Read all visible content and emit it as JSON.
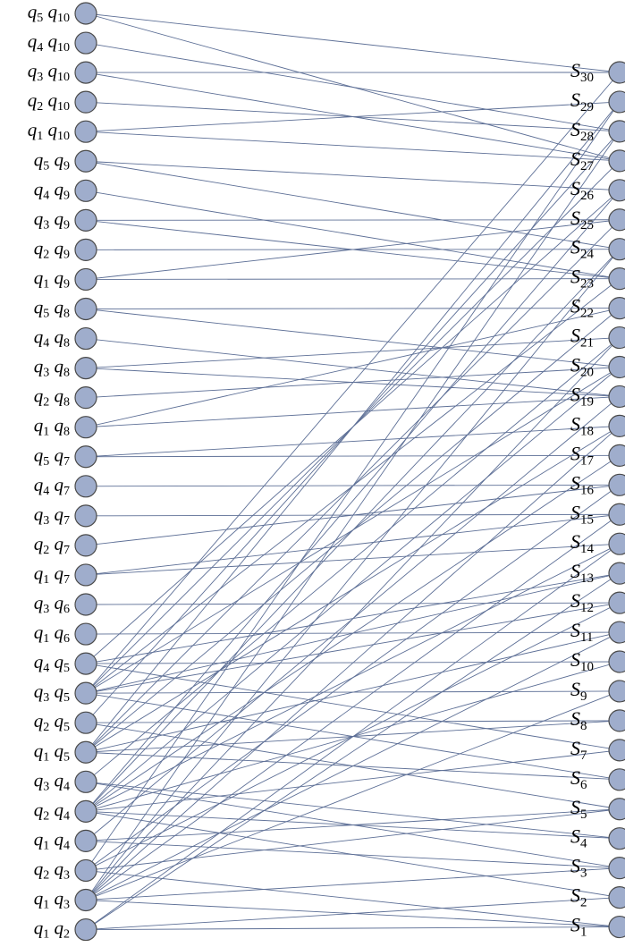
{
  "left_nodes": [
    {
      "id": "q5q10",
      "a": "5",
      "b": "10"
    },
    {
      "id": "q4q10",
      "a": "4",
      "b": "10"
    },
    {
      "id": "q3q10",
      "a": "3",
      "b": "10"
    },
    {
      "id": "q2q10",
      "a": "2",
      "b": "10"
    },
    {
      "id": "q1q10",
      "a": "1",
      "b": "10"
    },
    {
      "id": "q5q9",
      "a": "5",
      "b": "9"
    },
    {
      "id": "q4q9",
      "a": "4",
      "b": "9"
    },
    {
      "id": "q3q9",
      "a": "3",
      "b": "9"
    },
    {
      "id": "q2q9",
      "a": "2",
      "b": "9"
    },
    {
      "id": "q1q9",
      "a": "1",
      "b": "9"
    },
    {
      "id": "q5q8",
      "a": "5",
      "b": "8"
    },
    {
      "id": "q4q8",
      "a": "4",
      "b": "8"
    },
    {
      "id": "q3q8",
      "a": "3",
      "b": "8"
    },
    {
      "id": "q2q8",
      "a": "2",
      "b": "8"
    },
    {
      "id": "q1q8",
      "a": "1",
      "b": "8"
    },
    {
      "id": "q5q7",
      "a": "5",
      "b": "7"
    },
    {
      "id": "q4q7",
      "a": "4",
      "b": "7"
    },
    {
      "id": "q3q7",
      "a": "3",
      "b": "7"
    },
    {
      "id": "q2q7",
      "a": "2",
      "b": "7"
    },
    {
      "id": "q1q7",
      "a": "1",
      "b": "7"
    },
    {
      "id": "q3q6",
      "a": "3",
      "b": "6"
    },
    {
      "id": "q1q6",
      "a": "1",
      "b": "6"
    },
    {
      "id": "q4q5",
      "a": "4",
      "b": "5"
    },
    {
      "id": "q3q5",
      "a": "3",
      "b": "5"
    },
    {
      "id": "q2q5",
      "a": "2",
      "b": "5"
    },
    {
      "id": "q1q5",
      "a": "1",
      "b": "5"
    },
    {
      "id": "q3q4",
      "a": "3",
      "b": "4"
    },
    {
      "id": "q2q4",
      "a": "2",
      "b": "4"
    },
    {
      "id": "q1q4",
      "a": "1",
      "b": "4"
    },
    {
      "id": "q2q3",
      "a": "2",
      "b": "3"
    },
    {
      "id": "q1q3",
      "a": "1",
      "b": "3"
    },
    {
      "id": "q1q2",
      "a": "1",
      "b": "2"
    }
  ],
  "right_nodes": [
    "30",
    "29",
    "28",
    "27",
    "26",
    "25",
    "24",
    "23",
    "22",
    "21",
    "20",
    "19",
    "18",
    "17",
    "16",
    "15",
    "14",
    "13",
    "12",
    "11",
    "10",
    "9",
    "8",
    "7",
    "6",
    "5",
    "4",
    "3",
    "2",
    "1"
  ],
  "edges": [
    [
      "q5q10",
      "30"
    ],
    [
      "q5q10",
      "27"
    ],
    [
      "q4q10",
      "28"
    ],
    [
      "q3q10",
      "30"
    ],
    [
      "q3q10",
      "27"
    ],
    [
      "q2q10",
      "28"
    ],
    [
      "q1q10",
      "29"
    ],
    [
      "q1q10",
      "27"
    ],
    [
      "q5q9",
      "26"
    ],
    [
      "q5q9",
      "24"
    ],
    [
      "q4q9",
      "23"
    ],
    [
      "q3q9",
      "25"
    ],
    [
      "q3q9",
      "23"
    ],
    [
      "q2q9",
      "24"
    ],
    [
      "q1q9",
      "25"
    ],
    [
      "q1q9",
      "23"
    ],
    [
      "q5q8",
      "22"
    ],
    [
      "q5q8",
      "20"
    ],
    [
      "q4q8",
      "19"
    ],
    [
      "q3q8",
      "21"
    ],
    [
      "q3q8",
      "19"
    ],
    [
      "q2q8",
      "20"
    ],
    [
      "q1q8",
      "22"
    ],
    [
      "q1q8",
      "19"
    ],
    [
      "q5q7",
      "18"
    ],
    [
      "q5q7",
      "17"
    ],
    [
      "q4q7",
      "16"
    ],
    [
      "q3q7",
      "15"
    ],
    [
      "q2q7",
      "16"
    ],
    [
      "q1q7",
      "15"
    ],
    [
      "q1q7",
      "14"
    ],
    [
      "q3q6",
      "12"
    ],
    [
      "q1q6",
      "11"
    ],
    [
      "q4q5",
      "10"
    ],
    [
      "q4q5",
      "7"
    ],
    [
      "q4q5",
      "26"
    ],
    [
      "q4q5",
      "13"
    ],
    [
      "q3q5",
      "30"
    ],
    [
      "q3q5",
      "27"
    ],
    [
      "q3q5",
      "23"
    ],
    [
      "q3q5",
      "20"
    ],
    [
      "q3q5",
      "9"
    ],
    [
      "q3q5",
      "6"
    ],
    [
      "q3q5",
      "13"
    ],
    [
      "q3q5",
      "12"
    ],
    [
      "q2q5",
      "8"
    ],
    [
      "q2q5",
      "5"
    ],
    [
      "q2q5",
      "28"
    ],
    [
      "q1q5",
      "29"
    ],
    [
      "q1q5",
      "25"
    ],
    [
      "q1q5",
      "22"
    ],
    [
      "q1q5",
      "18"
    ],
    [
      "q1q5",
      "8"
    ],
    [
      "q1q5",
      "6"
    ],
    [
      "q1q5",
      "11"
    ],
    [
      "q3q4",
      "4"
    ],
    [
      "q3q4",
      "3"
    ],
    [
      "q3q4",
      "21"
    ],
    [
      "q2q4",
      "26"
    ],
    [
      "q2q4",
      "24"
    ],
    [
      "q2q4",
      "20"
    ],
    [
      "q2q4",
      "17"
    ],
    [
      "q2q4",
      "14"
    ],
    [
      "q2q4",
      "10"
    ],
    [
      "q2q4",
      "7"
    ],
    [
      "q2q4",
      "4"
    ],
    [
      "q2q4",
      "2"
    ],
    [
      "q1q4",
      "5"
    ],
    [
      "q1q4",
      "3"
    ],
    [
      "q1q4",
      "19"
    ],
    [
      "q2q3",
      "29"
    ],
    [
      "q2q3",
      "16"
    ],
    [
      "q2q3",
      "12"
    ],
    [
      "q2q3",
      "5"
    ],
    [
      "q2q3",
      "1"
    ],
    [
      "q1q3",
      "28"
    ],
    [
      "q1q3",
      "24"
    ],
    [
      "q1q3",
      "21"
    ],
    [
      "q1q3",
      "18"
    ],
    [
      "q1q3",
      "15"
    ],
    [
      "q1q3",
      "11"
    ],
    [
      "q1q3",
      "9"
    ],
    [
      "q1q3",
      "3"
    ],
    [
      "q1q3",
      "1"
    ],
    [
      "q1q2",
      "14"
    ],
    [
      "q1q2",
      "13"
    ],
    [
      "q1q2",
      "2"
    ],
    [
      "q1q2",
      "1"
    ]
  ]
}
